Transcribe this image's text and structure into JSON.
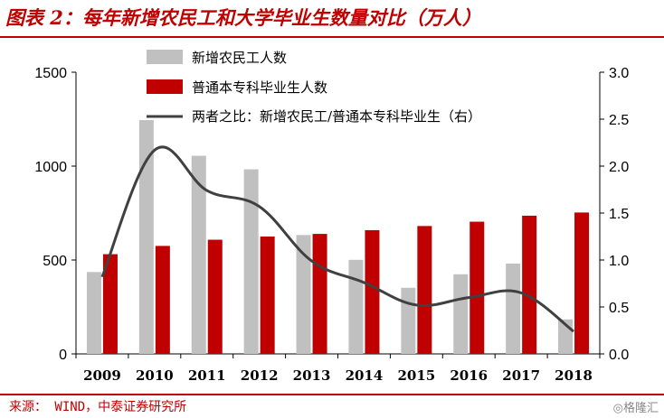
{
  "figure": {
    "title": "图表 2：每年新增农民工和大学毕业生数量对比（万人）",
    "source": "来源： WIND，中泰证券研究所",
    "watermark": "◎格隆汇"
  },
  "colors": {
    "series_gray": "#c0c0c0",
    "series_red": "#c00000",
    "series_line": "#404040",
    "accent": "#c00000"
  },
  "chart_data": {
    "type": "bar",
    "categories": [
      "2009",
      "2010",
      "2011",
      "2012",
      "2013",
      "2014",
      "2015",
      "2016",
      "2017",
      "2018"
    ],
    "series": [
      {
        "name": "新增农民工人数",
        "type": "bar",
        "axis": "left",
        "values": [
          436,
          1245,
          1055,
          983,
          633,
          501,
          352,
          424,
          481,
          184
        ]
      },
      {
        "name": "普通本专科毕业生人数",
        "type": "bar",
        "axis": "left",
        "values": [
          531,
          575,
          608,
          625,
          639,
          659,
          681,
          704,
          736,
          753
        ]
      },
      {
        "name": "两者之比：新增农民工/普通本专科毕业生（右）",
        "type": "line",
        "axis": "right",
        "values": [
          0.82,
          2.17,
          1.74,
          1.57,
          0.99,
          0.76,
          0.52,
          0.6,
          0.65,
          0.24
        ]
      }
    ],
    "yleft": {
      "lim": [
        0,
        1500
      ],
      "ticks": [
        "0",
        "500",
        "1000",
        "1500"
      ],
      "values": [
        0,
        500,
        1000,
        1500
      ]
    },
    "yright": {
      "lim": [
        0,
        3.0
      ],
      "ticks": [
        "0.0",
        "0.5",
        "1.0",
        "1.5",
        "2.0",
        "2.5",
        "3.0"
      ],
      "values": [
        0,
        0.5,
        1.0,
        1.5,
        2.0,
        2.5,
        3.0
      ]
    },
    "legend": {
      "placement": "top-center"
    },
    "grid": false
  }
}
